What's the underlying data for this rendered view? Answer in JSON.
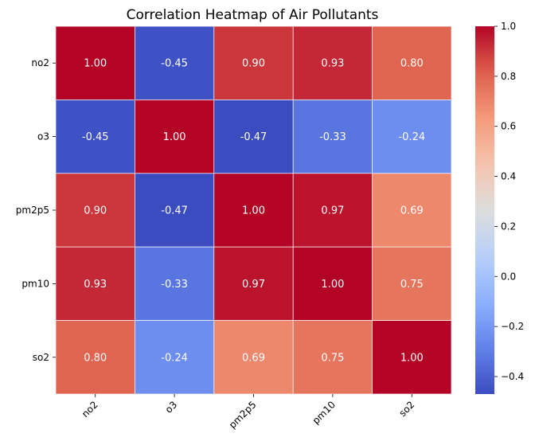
{
  "chart_data": {
    "type": "heatmap",
    "title": "Correlation Heatmap of Air Pollutants",
    "x_categories": [
      "no2",
      "o3",
      "pm2p5",
      "pm10",
      "so2"
    ],
    "y_categories": [
      "no2",
      "o3",
      "pm2p5",
      "pm10",
      "so2"
    ],
    "values": [
      [
        1.0,
        -0.45,
        0.9,
        0.93,
        0.8
      ],
      [
        -0.45,
        1.0,
        -0.47,
        -0.33,
        -0.24
      ],
      [
        0.9,
        -0.47,
        1.0,
        0.97,
        0.69
      ],
      [
        0.93,
        -0.33,
        0.97,
        1.0,
        0.75
      ],
      [
        0.8,
        -0.24,
        0.69,
        0.75,
        1.0
      ]
    ],
    "annotations": [
      [
        "1.00",
        "-0.45",
        "0.90",
        "0.93",
        "0.80"
      ],
      [
        "-0.45",
        "1.00",
        "-0.47",
        "-0.33",
        "-0.24"
      ],
      [
        "0.90",
        "-0.47",
        "1.00",
        "0.97",
        "0.69"
      ],
      [
        "0.93",
        "-0.33",
        "0.97",
        "1.00",
        "0.75"
      ],
      [
        "0.80",
        "-0.24",
        "0.69",
        "0.75",
        "1.00"
      ]
    ],
    "colormap": "coolwarm",
    "color_range": [
      -0.47,
      1.0
    ],
    "colorbar_ticks": [
      "1.0",
      "0.8",
      "0.6",
      "0.4",
      "0.2",
      "0.0",
      "−0.2",
      "−0.4"
    ],
    "colorbar_tick_values": [
      1.0,
      0.8,
      0.6,
      0.4,
      0.2,
      0.0,
      -0.2,
      -0.4
    ],
    "x_tick_rotation": "45 degrees",
    "cell_border_color": "#ffffff"
  }
}
